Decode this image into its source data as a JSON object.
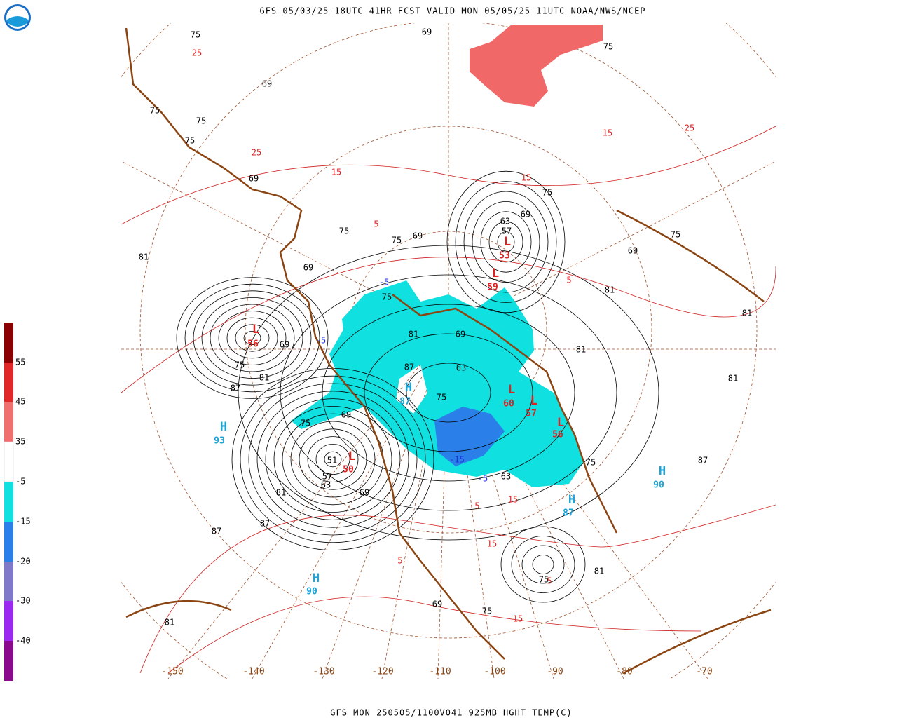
{
  "header": {
    "title": "GFS 05/03/25 18UTC 41HR FCST VALID MON 05/05/25 11UTC NOAA/NWS/NCEP"
  },
  "footer": {
    "label": "GFS MON 250505/1100V041 925MB HGHT TEMP(C)"
  },
  "colorbar": {
    "labels": [
      55,
      45,
      35,
      -5,
      -15,
      -20,
      -30,
      -40
    ]
  },
  "longitudes": [
    -150,
    -140,
    -130,
    -120,
    -110,
    -100,
    -90,
    -80,
    -70
  ],
  "centers": [
    {
      "letter": "L",
      "value": 56
    },
    {
      "letter": "H",
      "value": 87
    },
    {
      "letter": "H",
      "value": 93
    },
    {
      "letter": "L",
      "value": 50
    },
    {
      "letter": "H",
      "value": 90
    },
    {
      "letter": "H",
      "value": 90
    },
    {
      "letter": "H",
      "value": 87
    },
    {
      "letter": "L",
      "value": 53
    },
    {
      "letter": "L",
      "value": 59
    },
    {
      "letter": "L",
      "value": 60
    },
    {
      "letter": "L",
      "value": 57
    },
    {
      "letter": "L",
      "value": 56
    }
  ],
  "height_labels": [
    75,
    69,
    75,
    69,
    75,
    75,
    75,
    69,
    75,
    75,
    69,
    69,
    81,
    75,
    81,
    69,
    87,
    75,
    63,
    69,
    75,
    81,
    87,
    75,
    69,
    51,
    63,
    57,
    69,
    81,
    87,
    87,
    81,
    63,
    75,
    81,
    87,
    81,
    81,
    75,
    69,
    75,
    81,
    69,
    75,
    81,
    75,
    69,
    63,
    57
  ],
  "temp_labels": [
    25,
    25,
    15,
    5,
    15,
    25,
    15,
    5,
    15,
    15,
    5,
    15,
    5,
    5
  ],
  "cold_labels": [
    -5,
    -15,
    -5,
    -5
  ]
}
